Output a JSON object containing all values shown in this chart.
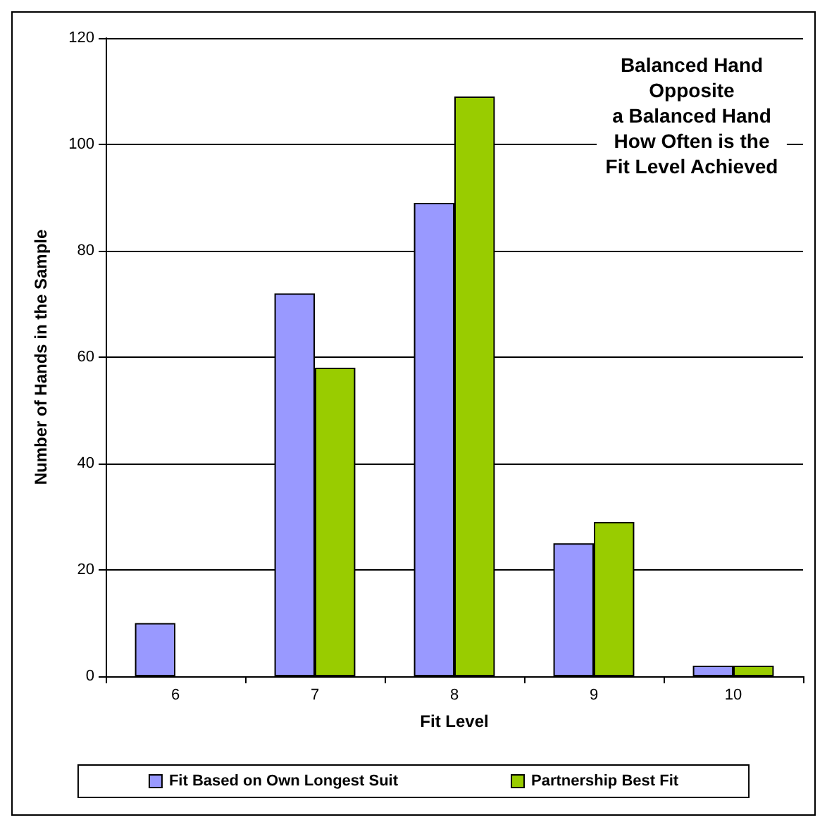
{
  "chart_data": {
    "type": "bar",
    "title": "Balanced Hand\nOpposite\na Balanced Hand\nHow Often is the\nFit Level Achieved",
    "xlabel": "Fit Level",
    "ylabel": "Number of Hands in the Sample",
    "categories": [
      "6",
      "7",
      "8",
      "9",
      "10"
    ],
    "series": [
      {
        "name": "Fit Based on Own Longest Suit",
        "color": "#9999ff",
        "values": [
          10,
          72,
          89,
          25,
          2
        ]
      },
      {
        "name": "Partnership Best Fit",
        "color": "#99cc00",
        "values": [
          null,
          58,
          109,
          29,
          2
        ]
      }
    ],
    "ylim": [
      0,
      120
    ],
    "yticks": [
      0,
      20,
      40,
      60,
      80,
      100,
      120
    ],
    "grid": "y",
    "legend": "bottom"
  }
}
